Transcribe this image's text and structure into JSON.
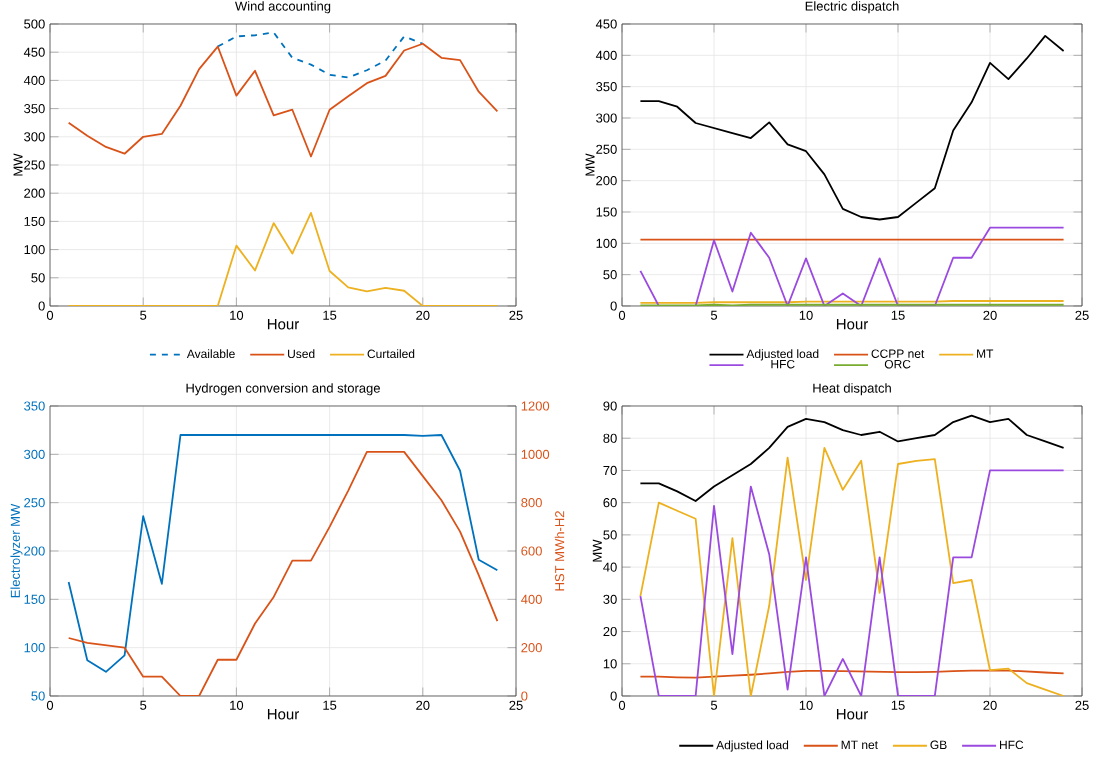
{
  "chart_data": [
    {
      "type": "line",
      "title": "Wind accounting",
      "xlabel": "Hour",
      "ylabel": "MW",
      "x": [
        1,
        2,
        3,
        4,
        5,
        6,
        7,
        8,
        9,
        10,
        11,
        12,
        13,
        14,
        15,
        16,
        17,
        18,
        19,
        20,
        21,
        22,
        23,
        24
      ],
      "xlim": [
        0,
        25
      ],
      "xticks": [
        0,
        5,
        10,
        15,
        20,
        25
      ],
      "ylim": [
        0,
        500
      ],
      "yticks": [
        0,
        50,
        100,
        150,
        200,
        250,
        300,
        350,
        400,
        450,
        500
      ],
      "grid": true,
      "legend": "bottom",
      "series": [
        {
          "name": "Available",
          "color": "#0072bd",
          "line_style": "dashed",
          "values": [
            null,
            null,
            null,
            null,
            null,
            null,
            null,
            null,
            460,
            478,
            480,
            485,
            440,
            428,
            410,
            405,
            418,
            435,
            478,
            465,
            null,
            null,
            null,
            null
          ]
        },
        {
          "name": "Used",
          "color": "#d95319",
          "values": [
            325,
            302,
            282,
            270,
            300,
            305,
            355,
            420,
            460,
            373,
            417,
            338,
            348,
            265,
            348,
            372,
            395,
            408,
            453,
            465,
            440,
            436,
            380,
            345
          ]
        },
        {
          "name": "Curtailed",
          "color": "#edb120",
          "values": [
            0,
            0,
            0,
            0,
            0,
            0,
            0,
            0,
            0,
            107,
            63,
            147,
            93,
            165,
            62,
            33,
            26,
            32,
            27,
            0,
            0,
            0,
            0,
            0
          ]
        }
      ]
    },
    {
      "type": "line",
      "title": "Electric dispatch",
      "xlabel": "Hour",
      "ylabel": "MW",
      "x": [
        1,
        2,
        3,
        4,
        5,
        6,
        7,
        8,
        9,
        10,
        11,
        12,
        13,
        14,
        15,
        16,
        17,
        18,
        19,
        20,
        21,
        22,
        23,
        24
      ],
      "xlim": [
        0,
        25
      ],
      "xticks": [
        0,
        5,
        10,
        15,
        20,
        25
      ],
      "ylim": [
        0,
        450
      ],
      "yticks": [
        0,
        50,
        100,
        150,
        200,
        250,
        300,
        350,
        400,
        450
      ],
      "grid": true,
      "legend": "bottom",
      "series": [
        {
          "name": "Adjusted load",
          "color": "#000000",
          "values": [
            327,
            327,
            318,
            292,
            284,
            276,
            268,
            293,
            258,
            247,
            210,
            155,
            142,
            138,
            142,
            165,
            188,
            280,
            325,
            388,
            362,
            395,
            431,
            407
          ]
        },
        {
          "name": "CCPP net",
          "color": "#d95319",
          "values": [
            106,
            106,
            106,
            106,
            106,
            106,
            106,
            106,
            106,
            106,
            106,
            106,
            106,
            106,
            106,
            106,
            106,
            106,
            106,
            106,
            106,
            106,
            106,
            106
          ]
        },
        {
          "name": "MT",
          "color": "#edb120",
          "values": [
            5,
            5,
            5,
            5,
            6,
            6,
            6,
            6,
            6,
            7,
            7,
            7,
            7,
            7,
            7,
            7,
            7,
            8,
            8,
            8,
            8,
            8,
            8,
            8
          ]
        },
        {
          "name": "HFC",
          "color": "#9b4ae0",
          "values": [
            56,
            0,
            0,
            0,
            105,
            23,
            117,
            77,
            0,
            76,
            0,
            20,
            0,
            76,
            0,
            0,
            0,
            77,
            77,
            125,
            125,
            125,
            125,
            125
          ]
        },
        {
          "name": "ORC",
          "color": "#77ac30",
          "values": [
            1,
            1,
            1,
            1,
            2,
            1,
            2,
            2,
            2,
            2,
            2,
            2,
            2,
            2,
            2,
            2,
            2,
            2,
            2,
            2,
            2,
            2,
            2,
            2
          ]
        }
      ]
    },
    {
      "type": "line",
      "title": "Hydrogen conversion and storage",
      "xlabel": "Hour",
      "ylabel": "Electrolyzer MW",
      "y2label": "HST MWh-H2",
      "x": [
        1,
        2,
        3,
        4,
        5,
        6,
        7,
        8,
        9,
        10,
        11,
        12,
        13,
        14,
        15,
        16,
        17,
        18,
        19,
        20,
        21,
        22,
        23,
        24
      ],
      "xlim": [
        0,
        25
      ],
      "xticks": [
        0,
        5,
        10,
        15,
        20,
        25
      ],
      "ylim": [
        50,
        350
      ],
      "yticks": [
        50,
        100,
        150,
        200,
        250,
        300,
        350
      ],
      "y2lim": [
        0,
        1200
      ],
      "y2ticks": [
        0,
        200,
        400,
        600,
        800,
        1000,
        1200
      ],
      "grid": true,
      "series": [
        {
          "color": "#0072bd",
          "values": [
            168,
            87,
            75,
            92,
            236,
            166,
            320,
            320,
            320,
            320,
            320,
            320,
            320,
            320,
            320,
            320,
            320,
            320,
            320,
            319,
            320,
            283,
            191,
            180
          ]
        },
        {
          "color": "#d95319",
          "axis": "y2",
          "values": [
            240,
            220,
            210,
            200,
            80,
            80,
            0,
            0,
            150,
            150,
            300,
            410,
            560,
            560,
            700,
            850,
            1010,
            1010,
            1010,
            910,
            810,
            680,
            500,
            310
          ]
        }
      ]
    },
    {
      "type": "line",
      "title": "Heat dispatch",
      "xlabel": "Hour",
      "ylabel": "MW",
      "x": [
        1,
        2,
        3,
        4,
        5,
        6,
        7,
        8,
        9,
        10,
        11,
        12,
        13,
        14,
        15,
        16,
        17,
        18,
        19,
        20,
        21,
        22,
        23,
        24
      ],
      "xlim": [
        0,
        25
      ],
      "xticks": [
        0,
        5,
        10,
        15,
        20,
        25
      ],
      "ylim": [
        0,
        90
      ],
      "yticks": [
        0,
        10,
        20,
        30,
        40,
        50,
        60,
        70,
        80,
        90
      ],
      "grid": true,
      "legend": "bottom",
      "series": [
        {
          "name": "Adjusted load",
          "color": "#000000",
          "values": [
            66,
            66,
            63.5,
            60.5,
            65,
            68.5,
            72,
            77,
            83.5,
            86,
            85,
            82.5,
            81,
            82,
            79,
            80,
            81,
            85,
            87,
            85,
            86,
            81,
            79,
            77
          ]
        },
        {
          "name": "MT net",
          "color": "#d95319",
          "values": [
            6,
            6,
            5.8,
            5.7,
            6,
            6.3,
            6.6,
            7,
            7.5,
            7.8,
            7.8,
            7.7,
            7.6,
            7.5,
            7.4,
            7.4,
            7.5,
            7.7,
            7.9,
            7.9,
            7.9,
            7.6,
            7.3,
            7
          ]
        },
        {
          "name": "GB",
          "color": "#edb120",
          "values": [
            31,
            60,
            57.5,
            55,
            0,
            49,
            0,
            28,
            74,
            36,
            77,
            64,
            73,
            32,
            72,
            73,
            73.5,
            35,
            36,
            8,
            8.5,
            4,
            2,
            0
          ]
        },
        {
          "name": "HFC",
          "color": "#9b4ae0",
          "values": [
            31,
            0,
            0,
            0,
            59,
            13,
            65,
            44,
            2,
            43,
            0,
            11.5,
            0,
            43,
            0,
            0,
            0,
            43,
            43,
            70,
            70,
            70,
            70,
            70
          ]
        }
      ]
    }
  ]
}
